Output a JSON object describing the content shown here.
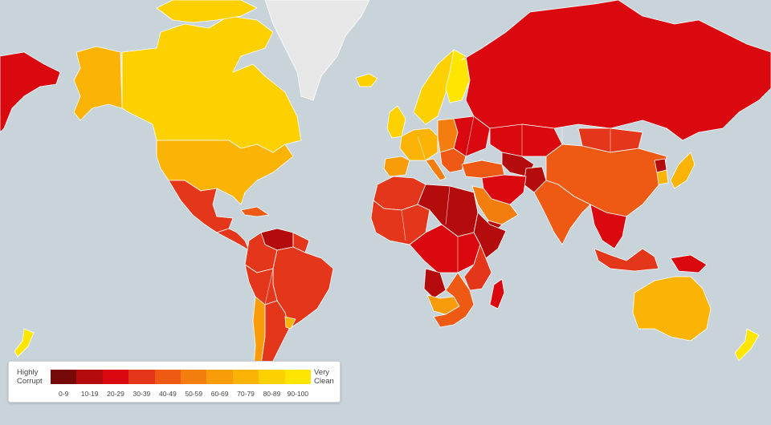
{
  "colors": {
    "ocean": "#c9d3da",
    "no_data": "#e8e8e8",
    "border": "#ffffff"
  },
  "legend": {
    "low_line1": "Highly",
    "low_line2": "Corrupt",
    "high_line1": "Very",
    "high_line2": "Clean",
    "bins": [
      {
        "label": "0-9",
        "color": "#760a0a"
      },
      {
        "label": "10-19",
        "color": "#b40c0c"
      },
      {
        "label": "20-29",
        "color": "#d9090f"
      },
      {
        "label": "30-39",
        "color": "#e4361a"
      },
      {
        "label": "40-49",
        "color": "#ee5a14"
      },
      {
        "label": "50-59",
        "color": "#f47d10"
      },
      {
        "label": "60-69",
        "color": "#f89c0a"
      },
      {
        "label": "70-79",
        "color": "#fbb405"
      },
      {
        "label": "80-89",
        "color": "#fdd000"
      },
      {
        "label": "90-100",
        "color": "#ffe600"
      }
    ]
  },
  "regions": [
    {
      "name": "alaska",
      "bin": 7
    },
    {
      "name": "canada",
      "bin": 8
    },
    {
      "name": "greenland",
      "bin": -1
    },
    {
      "name": "usa",
      "bin": 7
    },
    {
      "name": "mexico",
      "bin": 3
    },
    {
      "name": "central-america",
      "bin": 3
    },
    {
      "name": "caribbean",
      "bin": 4
    },
    {
      "name": "venezuela",
      "bin": 1
    },
    {
      "name": "colombia",
      "bin": 3
    },
    {
      "name": "guianas",
      "bin": 3
    },
    {
      "name": "brazil",
      "bin": 3
    },
    {
      "name": "peru-bolivia",
      "bin": 3
    },
    {
      "name": "chile",
      "bin": 6
    },
    {
      "name": "argentina",
      "bin": 3
    },
    {
      "name": "uruguay",
      "bin": 7
    },
    {
      "name": "iceland",
      "bin": 8
    },
    {
      "name": "uk",
      "bin": 8
    },
    {
      "name": "scandinavia",
      "bin": 8
    },
    {
      "name": "finland",
      "bin": 9
    },
    {
      "name": "western-europe",
      "bin": 7
    },
    {
      "name": "iberia",
      "bin": 6
    },
    {
      "name": "italy",
      "bin": 5
    },
    {
      "name": "eastern-europe",
      "bin": 5
    },
    {
      "name": "balkans",
      "bin": 4
    },
    {
      "name": "ukraine-belarus",
      "bin": 2
    },
    {
      "name": "turkey",
      "bin": 4
    },
    {
      "name": "russia",
      "bin": 2
    },
    {
      "name": "kazakhstan",
      "bin": 2
    },
    {
      "name": "central-asia",
      "bin": 1
    },
    {
      "name": "afghanistan",
      "bin": 1
    },
    {
      "name": "iran-iraq",
      "bin": 2
    },
    {
      "name": "arabian-peninsula",
      "bin": 5
    },
    {
      "name": "yemen",
      "bin": 1
    },
    {
      "name": "mongolia",
      "bin": 3
    },
    {
      "name": "china",
      "bin": 4
    },
    {
      "name": "korea-japan",
      "bin": 7
    },
    {
      "name": "north-korea",
      "bin": 1
    },
    {
      "name": "india",
      "bin": 4
    },
    {
      "name": "southeast-asia",
      "bin": 2
    },
    {
      "name": "indonesia",
      "bin": 3
    },
    {
      "name": "papua",
      "bin": 2
    },
    {
      "name": "australia",
      "bin": 7
    },
    {
      "name": "new-zealand",
      "bin": 9
    },
    {
      "name": "north-africa",
      "bin": 3
    },
    {
      "name": "libya-sudan",
      "bin": 1
    },
    {
      "name": "west-africa",
      "bin": 3
    },
    {
      "name": "central-africa",
      "bin": 2
    },
    {
      "name": "horn-of-africa",
      "bin": 1
    },
    {
      "name": "east-africa",
      "bin": 3
    },
    {
      "name": "angola",
      "bin": 1
    },
    {
      "name": "southern-africa",
      "bin": 4
    },
    {
      "name": "botswana-namibia",
      "bin": 6
    },
    {
      "name": "madagascar",
      "bin": 2
    }
  ]
}
